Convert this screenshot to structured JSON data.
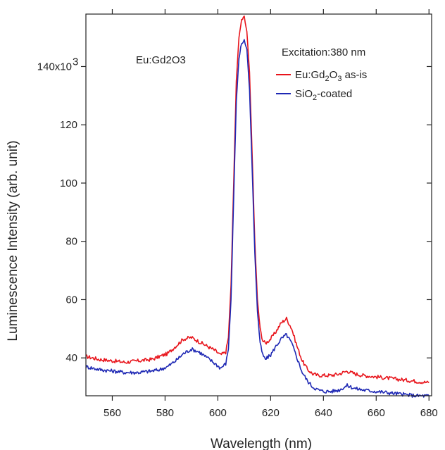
{
  "chart_data": {
    "type": "line",
    "xlabel": "Wavelength (nm)",
    "ylabel": "Luminescence Intensity (arb. unit)",
    "xlim": [
      550,
      681
    ],
    "ylim": [
      27,
      158
    ],
    "x_ticks": [
      560,
      580,
      600,
      620,
      640,
      660,
      680
    ],
    "y_ticks": [
      40,
      60,
      80,
      100,
      120,
      140
    ],
    "y_tick_labels": [
      "40",
      "60",
      "80",
      "100",
      "120",
      "140x10"
    ],
    "y_tick_superscript": "3",
    "annotations": {
      "sample": "Eu:Gd2O3",
      "excitation": "Excitation:380 nm"
    },
    "legend_position": "top-right",
    "legend_parts": [
      [
        "Eu:Gd",
        "2",
        "O",
        "3",
        " as-is"
      ],
      [
        "SiO",
        "2",
        "-coated"
      ]
    ],
    "series": [
      {
        "color": "#e8141b",
        "x": [
          550,
          555,
          560,
          565,
          570,
          575,
          578,
          581,
          584,
          587,
          590,
          593,
          596,
          599,
          601,
          603,
          604,
          605,
          606,
          607,
          608,
          609,
          610,
          611,
          612,
          613,
          614,
          615,
          616,
          617,
          618,
          620,
          622,
          624,
          626,
          628,
          630,
          632,
          634,
          636,
          638,
          640,
          643,
          646,
          649,
          652,
          655,
          660,
          665,
          670,
          675,
          680
        ],
        "y": [
          40.5,
          39.5,
          39,
          38.5,
          39,
          39.5,
          40.5,
          41.5,
          44,
          46.5,
          47,
          45.5,
          44,
          42.5,
          41,
          42,
          47,
          65,
          100,
          135,
          150,
          156,
          157,
          152,
          138,
          110,
          80,
          60,
          50,
          46,
          45,
          46.5,
          49,
          52,
          53.5,
          50,
          44,
          39,
          36,
          34.5,
          34,
          34,
          34,
          34.5,
          35.5,
          34.5,
          34,
          33.5,
          33,
          32.5,
          32,
          31.5
        ]
      },
      {
        "color": "#1e28b4",
        "x": [
          550,
          555,
          560,
          565,
          570,
          575,
          578,
          581,
          584,
          587,
          590,
          593,
          596,
          599,
          601,
          603,
          604,
          605,
          606,
          607,
          608,
          609,
          610,
          611,
          612,
          613,
          614,
          615,
          616,
          617,
          618,
          620,
          622,
          624,
          626,
          628,
          630,
          632,
          634,
          636,
          638,
          640,
          643,
          646,
          649,
          652,
          655,
          660,
          665,
          670,
          675,
          680
        ],
        "y": [
          37,
          36,
          35.5,
          35,
          35,
          35.5,
          36,
          37,
          39,
          41.5,
          43,
          42,
          40,
          38,
          36.5,
          38,
          43,
          60,
          95,
          128,
          143,
          148,
          149,
          146,
          132,
          105,
          76,
          56,
          45,
          41,
          39.5,
          41,
          44,
          46.5,
          48,
          45,
          40,
          35,
          32,
          30,
          29,
          28.5,
          28.5,
          29,
          30.5,
          29.5,
          29,
          28.5,
          28,
          27.5,
          27,
          27
        ]
      }
    ]
  }
}
